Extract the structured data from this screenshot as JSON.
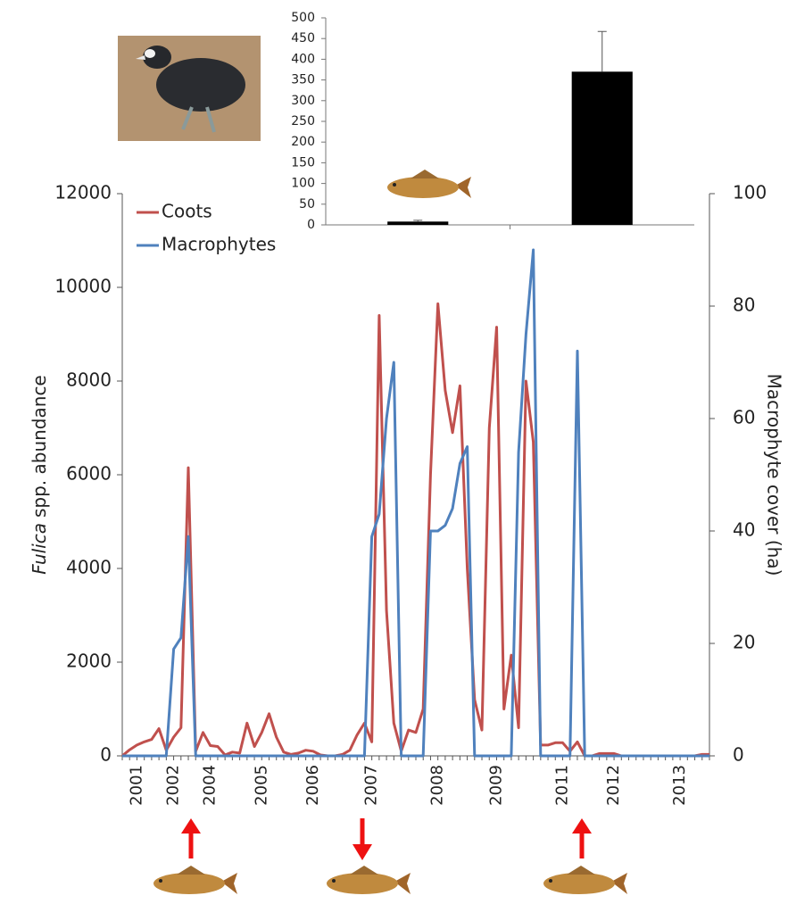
{
  "chart_data": [
    {
      "type": "line",
      "ylabel": [
        "Fulica",
        "spp. abundance"
      ],
      "y2label": "Macrophyte cover (ha)",
      "categories": [
        null,
        null,
        "2001",
        null,
        null,
        null,
        null,
        "2002",
        null,
        null,
        null,
        null,
        "2004",
        null,
        null,
        null,
        null,
        null,
        null,
        "2005",
        null,
        null,
        null,
        null,
        null,
        null,
        "2006",
        null,
        null,
        null,
        null,
        null,
        null,
        null,
        "2007",
        null,
        null,
        null,
        null,
        null,
        null,
        null,
        null,
        "2008",
        null,
        null,
        null,
        null,
        null,
        null,
        null,
        "2009",
        null,
        null,
        null,
        null,
        null,
        null,
        null,
        null,
        "2011",
        null,
        null,
        null,
        null,
        null,
        null,
        "2012",
        null,
        null,
        null,
        null,
        null,
        null,
        null,
        null,
        "2013",
        null,
        null,
        null,
        null
      ],
      "series": [
        {
          "name": "Coots",
          "color": "#c0504d",
          "axis": "y",
          "values": [
            0,
            130,
            230,
            300,
            350,
            580,
            120,
            400,
            600,
            6150,
            100,
            500,
            220,
            200,
            20,
            80,
            60,
            700,
            200,
            500,
            900,
            400,
            80,
            30,
            60,
            120,
            100,
            20,
            0,
            0,
            30,
            120,
            450,
            700,
            300,
            9400,
            3100,
            700,
            100,
            550,
            500,
            1000,
            6000,
            9650,
            7800,
            6900,
            7900,
            4000,
            1200,
            550,
            7000,
            9150,
            1000,
            2150,
            600,
            8000,
            6700,
            230,
            230,
            280,
            280,
            100,
            300,
            0,
            0,
            50,
            50,
            50,
            0,
            0,
            0,
            0,
            0,
            0,
            0,
            0,
            0,
            0,
            0,
            30,
            30
          ]
        },
        {
          "name": "Macrophytes",
          "color": "#4f81bd",
          "axis": "y2",
          "values": [
            0,
            0,
            0,
            0,
            0,
            0,
            0,
            19,
            21,
            39,
            0,
            0,
            0,
            0,
            0,
            0,
            0,
            0,
            0,
            0,
            0,
            0,
            0,
            0,
            0,
            0,
            0,
            0,
            0,
            0,
            0,
            0,
            0,
            0,
            39,
            43,
            60,
            70,
            0,
            0,
            0,
            0,
            40,
            40,
            41,
            44,
            52,
            55,
            0,
            0,
            0,
            0,
            0,
            0,
            54,
            75,
            90,
            0,
            0,
            0,
            0,
            0,
            72,
            0,
            0,
            0,
            0,
            0,
            0,
            0,
            0,
            0,
            0,
            0,
            0,
            0,
            0,
            0,
            0,
            0,
            0
          ]
        }
      ],
      "ylim": [
        0,
        12000
      ],
      "yticks": [
        0,
        2000,
        4000,
        6000,
        8000,
        10000,
        12000
      ],
      "y2lim": [
        0,
        100
      ],
      "y2ticks": [
        0,
        20,
        40,
        60,
        80,
        100
      ],
      "legend": "upper left"
    },
    {
      "type": "bar",
      "categories": [
        null,
        null
      ],
      "values": [
        8,
        370
      ],
      "errors": [
        3,
        97
      ],
      "color": "#000000",
      "ylim": [
        0,
        500
      ],
      "yticks": [
        0,
        50,
        100,
        150,
        200,
        250,
        300,
        350,
        400,
        450,
        500
      ]
    }
  ]
}
